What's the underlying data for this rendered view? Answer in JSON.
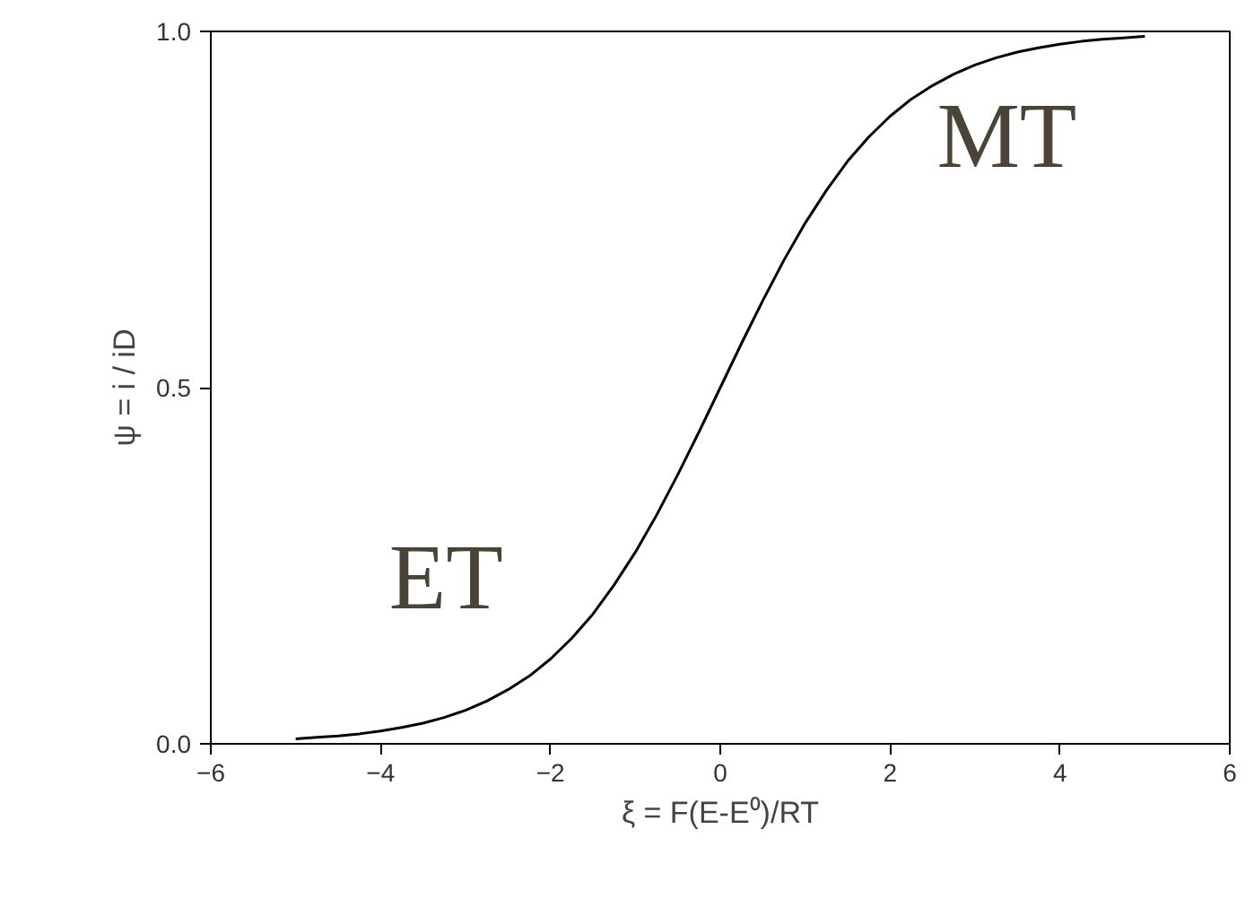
{
  "chart_data": {
    "type": "line",
    "xlabel": "ξ = F(E-E⁰)/RT",
    "ylabel": "ψ = i / iD",
    "x": [
      -5,
      -4.75,
      -4.5,
      -4.25,
      -4,
      -3.75,
      -3.5,
      -3.25,
      -3,
      -2.75,
      -2.5,
      -2.25,
      -2,
      -1.75,
      -1.5,
      -1.25,
      -1,
      -0.75,
      -0.5,
      -0.25,
      0,
      0.25,
      0.5,
      0.75,
      1,
      1.25,
      1.5,
      1.75,
      2,
      2.25,
      2.5,
      2.75,
      3,
      3.25,
      3.5,
      3.75,
      4,
      4.25,
      4.5,
      4.75,
      5
    ],
    "series": [
      {
        "color": "#000000",
        "values": [
          0.007,
          0.009,
          0.011,
          0.014,
          0.018,
          0.023,
          0.029,
          0.037,
          0.047,
          0.06,
          0.076,
          0.095,
          0.119,
          0.148,
          0.182,
          0.223,
          0.269,
          0.321,
          0.378,
          0.438,
          0.5,
          0.562,
          0.622,
          0.679,
          0.731,
          0.777,
          0.818,
          0.852,
          0.881,
          0.905,
          0.924,
          0.94,
          0.953,
          0.963,
          0.971,
          0.977,
          0.982,
          0.986,
          0.989,
          0.991,
          0.993
        ]
      }
    ],
    "xlim": [
      -6,
      6
    ],
    "ylim": [
      0,
      1
    ],
    "xticks": [
      -6,
      -4,
      -2,
      0,
      2,
      4,
      6
    ],
    "yticks": [
      {
        "value": 0,
        "label": "0.0"
      },
      {
        "value": 0.5,
        "label": "0.5"
      },
      {
        "value": 1,
        "label": "1.0"
      }
    ],
    "annotations": [
      "ET",
      "MT"
    ],
    "grid": false,
    "marker": "none",
    "line_style": "solid"
  }
}
